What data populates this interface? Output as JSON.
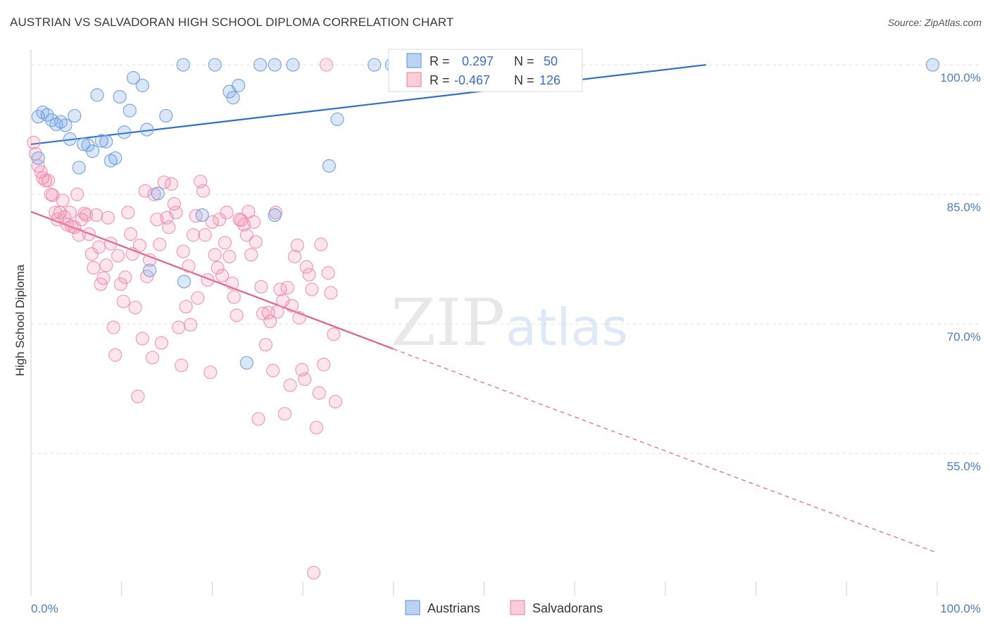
{
  "title": "AUSTRIAN VS SALVADORAN HIGH SCHOOL DIPLOMA CORRELATION CHART",
  "source": "Source: ZipAtlas.com",
  "watermark": {
    "zip": "ZIP",
    "atlas": "atlas"
  },
  "colors": {
    "austrians": "#6f9fe0",
    "austrians_line": "#3070c8",
    "salvadorans": "#f08aab",
    "salvadorans_line": "#e0608c",
    "tick_text": "#4a7cc7",
    "grid": "#e2e2e2"
  },
  "legend": {
    "r_label": "R =",
    "n_label": "N =",
    "austrians_r": "0.297",
    "austrians_n": "50",
    "salvadorans_r": "-0.467",
    "salvadorans_n": "126"
  },
  "bottom_legend": {
    "austrians": "Austrians",
    "salvadorans": "Salvadorans"
  },
  "chart_data": {
    "type": "scatter",
    "title": "AUSTRIAN VS SALVADORAN HIGH SCHOOL DIPLOMA CORRELATION CHART",
    "xlabel": "",
    "ylabel": "High School Diploma",
    "xlim": [
      0,
      100
    ],
    "ylim": [
      40.5,
      101.8
    ],
    "x_tick_labels": [
      {
        "value": 0,
        "label": "0.0%"
      },
      {
        "value": 100,
        "label": "100.0%"
      }
    ],
    "y_tick_labels": [
      {
        "value": 100,
        "label": "100.0%"
      },
      {
        "value": 85,
        "label": "85.0%"
      },
      {
        "value": 70,
        "label": "70.0%"
      },
      {
        "value": 55,
        "label": "55.0%"
      }
    ],
    "grid": true,
    "legend_position": "top-center",
    "series": [
      {
        "name": "Austrians",
        "r": 0.297,
        "n": 50,
        "trend": {
          "x0": 0,
          "y0": 90.8,
          "x1": 74.5,
          "y1": 100,
          "dashed_to": null
        },
        "points": [
          [
            0.8,
            89.2
          ],
          [
            0.8,
            94.0
          ],
          [
            1.3,
            94.5
          ],
          [
            1.8,
            94.2
          ],
          [
            2.3,
            93.6
          ],
          [
            2.8,
            93.1
          ],
          [
            3.3,
            93.4
          ],
          [
            3.8,
            93.0
          ],
          [
            4.3,
            91.4
          ],
          [
            4.8,
            94.1
          ],
          [
            5.3,
            88.1
          ],
          [
            5.8,
            90.8
          ],
          [
            6.3,
            90.7
          ],
          [
            6.8,
            90.0
          ],
          [
            7.3,
            96.5
          ],
          [
            7.8,
            91.2
          ],
          [
            8.3,
            91.1
          ],
          [
            8.8,
            88.9
          ],
          [
            9.3,
            89.2
          ],
          [
            9.8,
            96.3
          ],
          [
            10.3,
            92.2
          ],
          [
            10.9,
            94.7
          ],
          [
            11.3,
            98.5
          ],
          [
            12.3,
            97.6
          ],
          [
            12.8,
            92.5
          ],
          [
            14.9,
            94.1
          ],
          [
            16.8,
            100.0
          ],
          [
            18.9,
            82.6
          ],
          [
            20.3,
            100.0
          ],
          [
            21.9,
            96.9
          ],
          [
            22.3,
            96.2
          ],
          [
            22.9,
            97.6
          ],
          [
            25.3,
            100.0
          ],
          [
            26.9,
            82.6
          ],
          [
            26.9,
            100.0
          ],
          [
            28.9,
            100.0
          ],
          [
            32.9,
            88.3
          ],
          [
            33.8,
            93.7
          ],
          [
            37.9,
            100.0
          ],
          [
            39.8,
            100.0
          ],
          [
            42.2,
            100.0
          ],
          [
            43.2,
            100.0
          ],
          [
            47.2,
            100.0
          ],
          [
            51.5,
            100.0
          ],
          [
            57.8,
            100.0
          ],
          [
            99.5,
            100.0
          ],
          [
            14.0,
            85.1
          ],
          [
            13.1,
            76.2
          ],
          [
            16.9,
            74.9
          ],
          [
            23.8,
            65.5
          ]
        ]
      },
      {
        "name": "Salvadorans",
        "r": -0.467,
        "n": 126,
        "trend": {
          "x0": 0,
          "y0": 83.0,
          "x1": 40,
          "y1": 67.1,
          "dashed_to": {
            "x": 100,
            "y": 43.5
          }
        },
        "points": [
          [
            0.3,
            91.0
          ],
          [
            0.5,
            89.7
          ],
          [
            0.8,
            88.3
          ],
          [
            1.1,
            87.6
          ],
          [
            1.3,
            86.9
          ],
          [
            1.6,
            86.6
          ],
          [
            1.9,
            86.6
          ],
          [
            2.2,
            85.0
          ],
          [
            2.4,
            84.9
          ],
          [
            2.7,
            82.9
          ],
          [
            2.9,
            82.1
          ],
          [
            3.2,
            82.9
          ],
          [
            3.5,
            84.3
          ],
          [
            3.7,
            82.4
          ],
          [
            4.0,
            81.5
          ],
          [
            4.3,
            82.9
          ],
          [
            4.5,
            81.3
          ],
          [
            4.8,
            81.2
          ],
          [
            5.1,
            85.0
          ],
          [
            5.3,
            80.3
          ],
          [
            5.6,
            82.1
          ],
          [
            5.9,
            82.8
          ],
          [
            6.1,
            82.6
          ],
          [
            6.4,
            80.4
          ],
          [
            6.7,
            78.1
          ],
          [
            6.9,
            76.5
          ],
          [
            7.2,
            82.6
          ],
          [
            7.5,
            78.9
          ],
          [
            7.7,
            74.6
          ],
          [
            8.0,
            75.3
          ],
          [
            8.3,
            76.8
          ],
          [
            8.5,
            82.3
          ],
          [
            8.8,
            79.3
          ],
          [
            9.1,
            69.6
          ],
          [
            9.3,
            66.4
          ],
          [
            9.6,
            77.9
          ],
          [
            9.9,
            74.6
          ],
          [
            10.2,
            72.6
          ],
          [
            10.4,
            75.4
          ],
          [
            10.7,
            82.9
          ],
          [
            11.0,
            80.4
          ],
          [
            11.2,
            78.1
          ],
          [
            11.5,
            71.9
          ],
          [
            11.8,
            61.6
          ],
          [
            12.0,
            79.1
          ],
          [
            12.3,
            68.3
          ],
          [
            12.6,
            85.4
          ],
          [
            12.8,
            75.5
          ],
          [
            13.1,
            77.4
          ],
          [
            13.4,
            66.1
          ],
          [
            13.6,
            85.0
          ],
          [
            13.9,
            82.1
          ],
          [
            14.2,
            79.2
          ],
          [
            14.4,
            67.8
          ],
          [
            14.7,
            86.4
          ],
          [
            15.0,
            82.3
          ],
          [
            15.2,
            81.2
          ],
          [
            15.5,
            86.2
          ],
          [
            15.8,
            83.9
          ],
          [
            16.0,
            82.9
          ],
          [
            16.3,
            69.6
          ],
          [
            16.6,
            65.2
          ],
          [
            16.8,
            78.4
          ],
          [
            17.1,
            72.0
          ],
          [
            17.4,
            76.7
          ],
          [
            17.6,
            69.9
          ],
          [
            17.9,
            80.3
          ],
          [
            18.2,
            82.5
          ],
          [
            18.4,
            73.0
          ],
          [
            18.7,
            86.5
          ],
          [
            19.0,
            85.4
          ],
          [
            19.2,
            80.3
          ],
          [
            19.5,
            75.1
          ],
          [
            19.8,
            64.4
          ],
          [
            20.0,
            81.8
          ],
          [
            20.3,
            78.0
          ],
          [
            20.6,
            76.5
          ],
          [
            20.8,
            82.1
          ],
          [
            21.1,
            75.6
          ],
          [
            21.4,
            79.4
          ],
          [
            21.6,
            82.9
          ],
          [
            21.9,
            77.8
          ],
          [
            22.2,
            74.7
          ],
          [
            22.4,
            73.1
          ],
          [
            22.7,
            71.0
          ],
          [
            23.0,
            82.1
          ],
          [
            23.2,
            82.0
          ],
          [
            23.5,
            81.5
          ],
          [
            23.8,
            80.3
          ],
          [
            24.0,
            83.0
          ],
          [
            24.3,
            78.0
          ],
          [
            24.6,
            81.8
          ],
          [
            24.8,
            79.5
          ],
          [
            25.1,
            59.0
          ],
          [
            25.4,
            74.3
          ],
          [
            25.6,
            71.2
          ],
          [
            25.9,
            67.6
          ],
          [
            26.2,
            71.3
          ],
          [
            26.4,
            70.3
          ],
          [
            26.7,
            64.6
          ],
          [
            27.0,
            82.9
          ],
          [
            27.2,
            71.4
          ],
          [
            27.5,
            74.0
          ],
          [
            27.8,
            72.7
          ],
          [
            28.0,
            59.6
          ],
          [
            28.3,
            74.2
          ],
          [
            28.6,
            62.9
          ],
          [
            28.8,
            72.1
          ],
          [
            29.1,
            77.8
          ],
          [
            29.4,
            79.1
          ],
          [
            29.6,
            70.7
          ],
          [
            29.9,
            64.7
          ],
          [
            30.2,
            63.6
          ],
          [
            30.4,
            76.6
          ],
          [
            30.7,
            75.7
          ],
          [
            31.0,
            74.0
          ],
          [
            31.2,
            41.2
          ],
          [
            31.5,
            58.0
          ],
          [
            31.8,
            62.0
          ],
          [
            32.0,
            79.2
          ],
          [
            32.3,
            65.3
          ],
          [
            32.6,
            100.0
          ],
          [
            32.8,
            75.9
          ],
          [
            33.1,
            73.6
          ],
          [
            33.4,
            68.8
          ],
          [
            33.6,
            61.0
          ]
        ]
      }
    ]
  }
}
